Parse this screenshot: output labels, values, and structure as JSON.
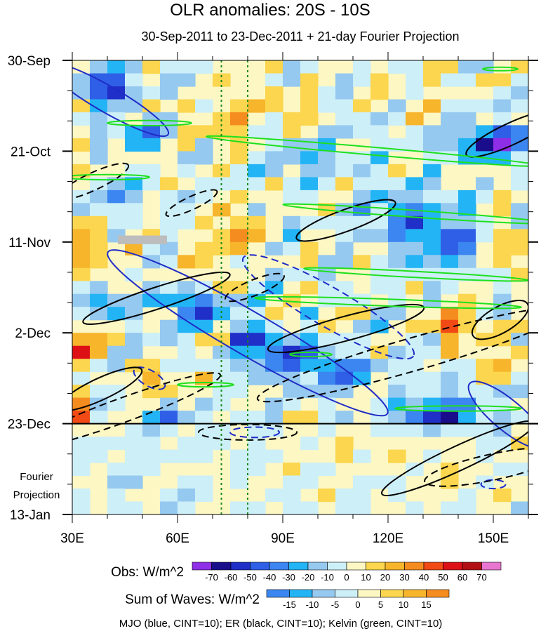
{
  "chart_data": {
    "type": "heatmap",
    "title": "OLR anomalies: 20S - 10S",
    "subtitle": "30-Sep-2011 to 23-Dec-2011 + 21-day Fourier Projection",
    "x_axis": {
      "range": [
        30,
        160
      ],
      "ticks": [
        30,
        60,
        90,
        120,
        150
      ],
      "tick_labels": [
        "30E",
        "60E",
        "90E",
        "120E",
        "150E"
      ]
    },
    "y_axis": {
      "range_days": [
        0,
        105
      ],
      "ticks": [
        0,
        21,
        42,
        63,
        84,
        105
      ],
      "tick_labels": [
        "30-Sep",
        "21-Oct",
        "11-Nov",
        "2-Dec",
        "23-Dec",
        "13-Jan"
      ]
    },
    "projection_label": [
      "Fourier",
      "Projection"
    ],
    "observation_end_day": 84,
    "reference_longitudes": [
      72.5,
      80
    ],
    "obs_colorbar": {
      "label": "Obs: W/m^2",
      "levels": [
        -70,
        -60,
        -50,
        -40,
        -30,
        -20,
        -10,
        0,
        10,
        20,
        30,
        40,
        50,
        60,
        70
      ],
      "colors": [
        "#8e2ee6",
        "#1a0d8c",
        "#1f2fc8",
        "#2f5fe6",
        "#3b86f0",
        "#23b4f5",
        "#96c9f0",
        "#cdeff8",
        "#fdf7c4",
        "#fbd64e",
        "#f7b52c",
        "#f58c1f",
        "#f24a14",
        "#dd1016",
        "#b21014",
        "#e875cf"
      ]
    },
    "waves_colorbar": {
      "label": "Sum of Waves: W/m^2",
      "levels": [
        -15,
        -10,
        -5,
        0,
        5,
        10,
        15
      ],
      "colors": [
        "#3b86f0",
        "#23b4f5",
        "#96c9f0",
        "#cdeff8",
        "#fdf7c4",
        "#fbd64e",
        "#f7b52c",
        "#f58c1f"
      ]
    },
    "contour_note": "MJO (blue, CINT=10); ER (black, CINT=10); Kelvin (green, CINT=10)",
    "series": [
      {
        "name": "MJO",
        "color": "#1f2bc6",
        "contours": [
          {
            "sign": "neg",
            "lon": 40,
            "day": 9,
            "rx": 20,
            "ry": 3,
            "rot": 30
          },
          {
            "sign": "neg",
            "lon": 80,
            "day": 63,
            "rx": 46,
            "ry": 5,
            "rot": 30
          },
          {
            "sign": "neg",
            "lon": 154,
            "day": 82,
            "rx": 14,
            "ry": 3.5,
            "rot": 40
          },
          {
            "sign": "pos",
            "lon": 103,
            "day": 57,
            "rx": 28,
            "ry": 4.5,
            "rot": 30
          },
          {
            "sign": "pos",
            "lon": 52,
            "day": 73.5,
            "rx": 5,
            "ry": 1.8,
            "rot": 30
          },
          {
            "sign": "pos",
            "lon": 82,
            "day": 86,
            "rx": 7,
            "ry": 1.2,
            "rot": 0
          },
          {
            "sign": "pos",
            "lon": 150,
            "day": 98,
            "rx": 3.5,
            "ry": 1,
            "rot": 0
          }
        ]
      },
      {
        "name": "ER",
        "color": "#000000",
        "contours": [
          {
            "sign": "pos",
            "lon": 54,
            "day": 55,
            "rx": 22,
            "ry": 2.5,
            "rot": -18
          },
          {
            "sign": "pos",
            "lon": 108,
            "day": 62,
            "rx": 23,
            "ry": 2.8,
            "rot": -15
          },
          {
            "sign": "pos",
            "lon": 108,
            "day": 37,
            "rx": 15,
            "ry": 2.5,
            "rot": -20
          },
          {
            "sign": "pos",
            "lon": 155,
            "day": 17,
            "rx": 14,
            "ry": 2.5,
            "rot": -25
          },
          {
            "sign": "pos",
            "lon": 38,
            "day": 76,
            "rx": 13,
            "ry": 2.5,
            "rot": -25
          },
          {
            "sign": "pos",
            "lon": 152,
            "day": 60,
            "rx": 9,
            "ry": 3,
            "rot": -30
          },
          {
            "sign": "pos",
            "lon": 140,
            "day": 92,
            "rx": 24,
            "ry": 2.8,
            "rot": -25
          },
          {
            "sign": "neg",
            "lon": 127,
            "day": 68,
            "rx": 46,
            "ry": 3.8,
            "rot": -16
          },
          {
            "sign": "neg",
            "lon": 44,
            "day": 81,
            "rx": 30,
            "ry": 2.8,
            "rot": -20
          },
          {
            "sign": "neg",
            "lon": 36,
            "day": 28,
            "rx": 11,
            "ry": 2,
            "rot": -25
          },
          {
            "sign": "neg",
            "lon": 64,
            "day": 33,
            "rx": 8,
            "ry": 1.5,
            "rot": -25
          },
          {
            "sign": "neg",
            "lon": 82,
            "day": 52.5,
            "rx": 9,
            "ry": 1.8,
            "rot": -22
          },
          {
            "sign": "neg",
            "lon": 80,
            "day": 86,
            "rx": 14,
            "ry": 1.8,
            "rot": 0
          },
          {
            "sign": "neg",
            "lon": 150,
            "day": 94,
            "rx": 20,
            "ry": 3,
            "rot": -12
          }
        ]
      },
      {
        "name": "Kelvin",
        "color": "#1ee01e",
        "contours": [
          {
            "sign": "pos",
            "lon": 116,
            "day": 21,
            "rx": 48,
            "ry": 0.9,
            "rot": 5
          },
          {
            "sign": "pos",
            "lon": 128,
            "day": 35.5,
            "rx": 38,
            "ry": 0.8,
            "rot": 4
          },
          {
            "sign": "pos",
            "lon": 128,
            "day": 49.5,
            "rx": 32,
            "ry": 0.7,
            "rot": 3
          },
          {
            "sign": "pos",
            "lon": 120,
            "day": 56,
            "rx": 38,
            "ry": 0.8,
            "rot": 2
          },
          {
            "sign": "pos",
            "lon": 52,
            "day": 14.5,
            "rx": 12,
            "ry": 0.6,
            "rot": 0
          },
          {
            "sign": "pos",
            "lon": 40,
            "day": 27,
            "rx": 12,
            "ry": 0.6,
            "rot": 0
          },
          {
            "sign": "pos",
            "lon": 68,
            "day": 75,
            "rx": 8,
            "ry": 0.5,
            "rot": 0
          },
          {
            "sign": "pos",
            "lon": 140,
            "day": 80.5,
            "rx": 18,
            "ry": 0.6,
            "rot": 0
          },
          {
            "sign": "pos",
            "lon": 152,
            "day": 2,
            "rx": 5,
            "ry": 0.4,
            "rot": 0
          },
          {
            "sign": "pos",
            "lon": 98,
            "day": 68,
            "rx": 6,
            "ry": 0.5,
            "rot": 0
          }
        ]
      }
    ]
  }
}
